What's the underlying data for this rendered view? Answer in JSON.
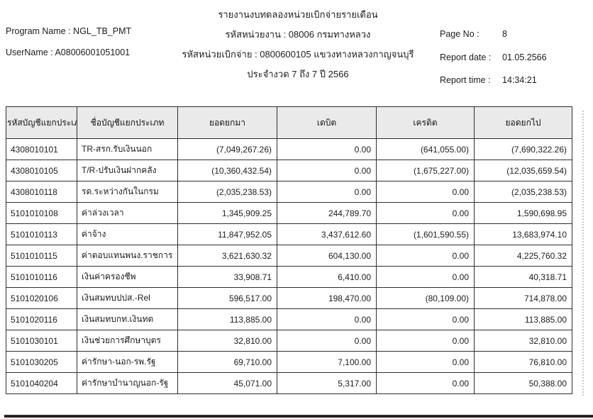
{
  "report": {
    "title": "รายงานงบทดลองหน่วยเบิกจ่ายรายเดือน",
    "program_name_label": "Program Name : NGL_TB_PMT",
    "username_label": "UserName : A08006001051001",
    "agency_line": "รหัสหน่วยงาน : 08006 กรมทางหลวง",
    "disbursement_line": "รหัสหน่วยเบิกจ่าย : 0800600105 แขวงทางหลวงกาญจนบุรี",
    "period_line": "ประจำงวด 7 ถึง 7 ปี 2566",
    "page_no_label": "Page No :",
    "page_no": "8",
    "report_date_label": "Report date :",
    "report_date": "01.05.2566",
    "report_time_label": "Report time :",
    "report_time": "14:34:21"
  },
  "table": {
    "columns": [
      "รหัสบัญชีแยกประเภท",
      "ชื่อบัญชีแยกประเภท",
      "ยอดยกมา",
      "เดบิต",
      "เครดิต",
      "ยอดยกไป"
    ],
    "rows": [
      [
        "4308010101",
        "TR-สรก.รับเงินนอก",
        "(7,049,267.26)",
        "0.00",
        "(641,055.00)",
        "(7,690,322.26)"
      ],
      [
        "4308010105",
        "T/R-ปรับเงินฝากคลัง",
        "(10,360,432.54)",
        "0.00",
        "(1,675,227.00)",
        "(12,035,659.54)"
      ],
      [
        "4308010118",
        "รด.ระหว่างกันในกรม",
        "(2,035,238.53)",
        "0.00",
        "0.00",
        "(2,035,238.53)"
      ],
      [
        "5101010108",
        "ค่าล่วงเวลา",
        "1,345,909.25",
        "244,789.70",
        "0.00",
        "1,590,698.95"
      ],
      [
        "5101010113",
        "ค่าจ้าง",
        "11,847,952.05",
        "3,437,612.60",
        "(1,601,590.55)",
        "13,683,974.10"
      ],
      [
        "5101010115",
        "ค่าตอบแทนพนง.ราชการ",
        "3,621,630.32",
        "604,130.00",
        "0.00",
        "4,225,760.32"
      ],
      [
        "5101010116",
        "เงินค่าครองชีพ",
        "33,908.71",
        "6,410.00",
        "0.00",
        "40,318.71"
      ],
      [
        "5101020106",
        "เงินสมทบปปส.-Rel",
        "596,517.00",
        "198,470.00",
        "(80,109.00)",
        "714,878.00"
      ],
      [
        "5101020116",
        "เงินสมทบกท.เงินทด",
        "113,885.00",
        "0.00",
        "0.00",
        "113,885.00"
      ],
      [
        "5101030101",
        "เงินช่วยการศึกษาบุตร",
        "32,810.00",
        "0.00",
        "0.00",
        "32,810.00"
      ],
      [
        "5101030205",
        "ค่ารักษา-นอก-รพ.รัฐ",
        "69,710.00",
        "7,100.00",
        "0.00",
        "76,810.00"
      ],
      [
        "5101040204",
        "ค่ารักษาบำนาญนอก-รัฐ",
        "45,071.00",
        "5,317.00",
        "0.00",
        "50,388.00"
      ]
    ]
  }
}
